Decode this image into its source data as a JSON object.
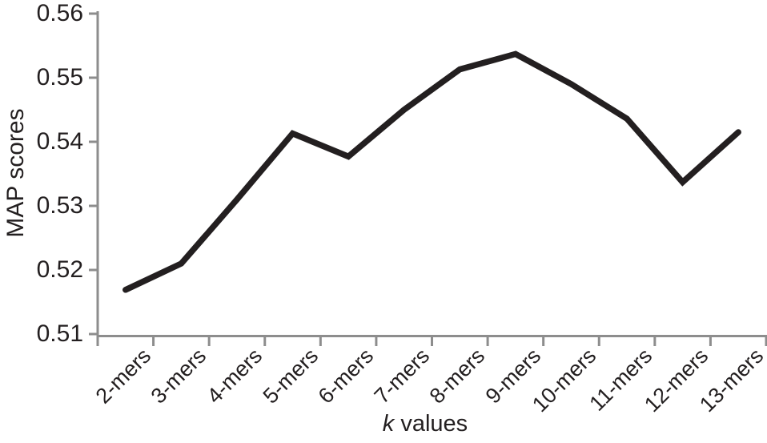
{
  "chart_data": {
    "type": "line",
    "title": "",
    "xlabel": "k values",
    "xlabel_k": "k",
    "xlabel_rest": " values",
    "ylabel": "MAP scores",
    "categories": [
      "2-mers",
      "3-mers",
      "4-mers",
      "5-mers",
      "6-mers",
      "7-mers",
      "8-mers",
      "9-mers",
      "10-mers",
      "11-mers",
      "12-mers",
      "13-mers"
    ],
    "series": [
      {
        "name": "MAP scores",
        "values": [
          0.5169,
          0.521,
          0.531,
          0.5413,
          0.5377,
          0.545,
          0.5513,
          0.5537,
          0.549,
          0.5436,
          0.5337,
          0.5415
        ]
      }
    ],
    "ylim": [
      0.51,
      0.56
    ],
    "yticks": [
      0.51,
      0.52,
      0.53,
      0.54,
      0.55,
      0.56
    ],
    "ytick_labels": [
      "0.51",
      "0.52",
      "0.53",
      "0.54",
      "0.55",
      "0.56"
    ],
    "grid": false,
    "legend": "none",
    "line_color": "#231f20",
    "line_width": 7.5,
    "axis_color": "#8d8d8d",
    "text_color": "#231f20"
  }
}
